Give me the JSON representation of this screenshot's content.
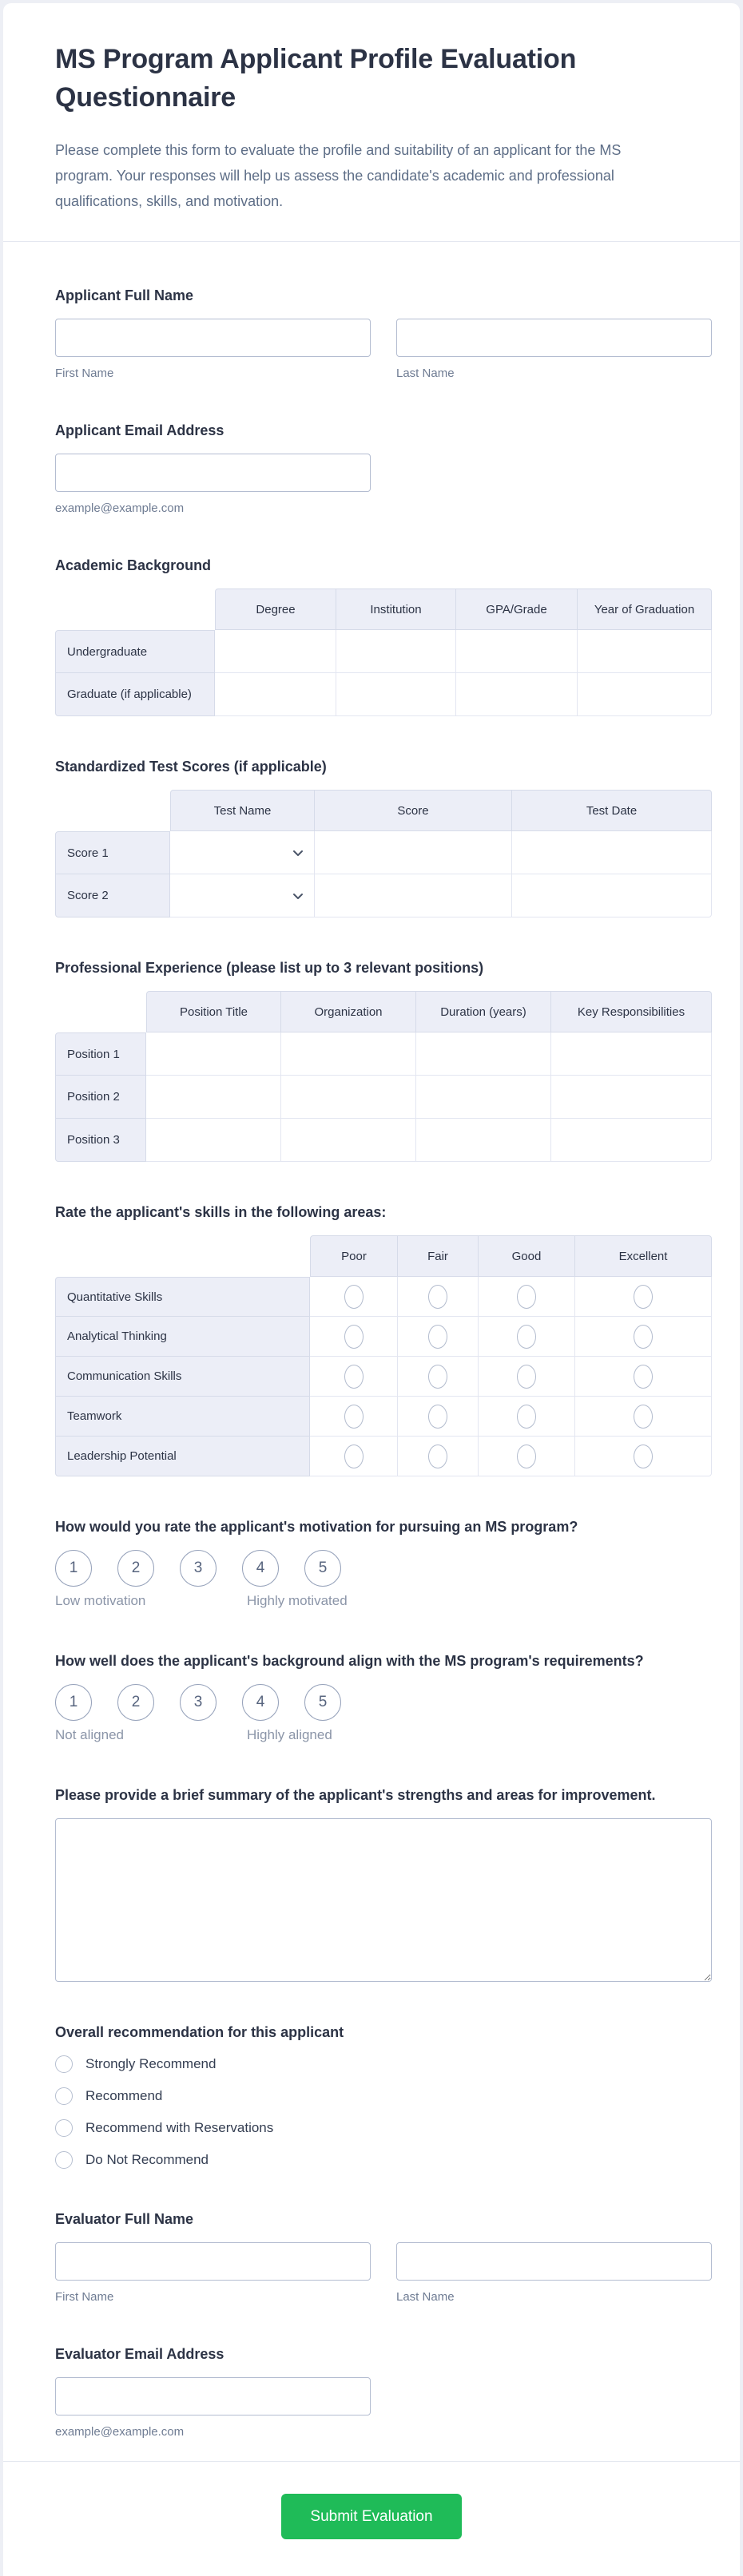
{
  "page": {
    "title": "MS Program Applicant Profile Evaluation Questionnaire",
    "description": "Please complete this form to evaluate the profile and suitability of an applicant for the MS program. Your responses will help us assess the candidate's academic and professional qualifications, skills, and motivation."
  },
  "applicant_name": {
    "label": "Applicant Full Name",
    "first_sublabel": "First Name",
    "last_sublabel": "Last Name"
  },
  "applicant_email": {
    "label": "Applicant Email Address",
    "sublabel": "example@example.com"
  },
  "academic": {
    "label": "Academic Background",
    "columns": [
      "Degree",
      "Institution",
      "GPA/Grade",
      "Year of Graduation"
    ],
    "rows": [
      "Undergraduate",
      "Graduate (if applicable)"
    ]
  },
  "tests": {
    "label": "Standardized Test Scores (if applicable)",
    "columns": [
      "Test Name",
      "Score",
      "Test Date"
    ],
    "rows": [
      "Score 1",
      "Score 2"
    ],
    "dropdown_column": "Test Name"
  },
  "experience": {
    "label": "Professional Experience (please list up to 3 relevant positions)",
    "columns": [
      "Position Title",
      "Organization",
      "Duration (years)",
      "Key Responsibilities"
    ],
    "rows": [
      "Position 1",
      "Position 2",
      "Position 3"
    ]
  },
  "skills": {
    "label": "Rate the applicant's skills in the following areas:",
    "columns": [
      "Poor",
      "Fair",
      "Good",
      "Excellent"
    ],
    "rows": [
      "Quantitative Skills",
      "Analytical Thinking",
      "Communication Skills",
      "Teamwork",
      "Leadership Potential"
    ]
  },
  "motivation": {
    "label": "How would you rate the applicant's motivation for pursuing an MS program?",
    "options": [
      "1",
      "2",
      "3",
      "4",
      "5"
    ],
    "left_label": "Low motivation",
    "right_label": "Highly motivated"
  },
  "alignment": {
    "label": "How well does the applicant's background align with the MS program's requirements?",
    "options": [
      "1",
      "2",
      "3",
      "4",
      "5"
    ],
    "left_label": "Not aligned",
    "right_label": "Highly aligned"
  },
  "summary": {
    "label": "Please provide a brief summary of the applicant's strengths and areas for improvement."
  },
  "recommendation": {
    "label": "Overall recommendation for this applicant",
    "options": [
      "Strongly Recommend",
      "Recommend",
      "Recommend with Reservations",
      "Do Not Recommend"
    ]
  },
  "evaluator_name": {
    "label": "Evaluator Full Name",
    "first_sublabel": "First Name",
    "last_sublabel": "Last Name"
  },
  "evaluator_email": {
    "label": "Evaluator Email Address",
    "sublabel": "example@example.com"
  },
  "submit": {
    "label": "Submit Evaluation"
  },
  "colors": {
    "accent_green": "#1fbb58",
    "header_cell_bg": "#eceef7",
    "title_text": "#2c3345",
    "muted_text": "#6f7c93"
  }
}
